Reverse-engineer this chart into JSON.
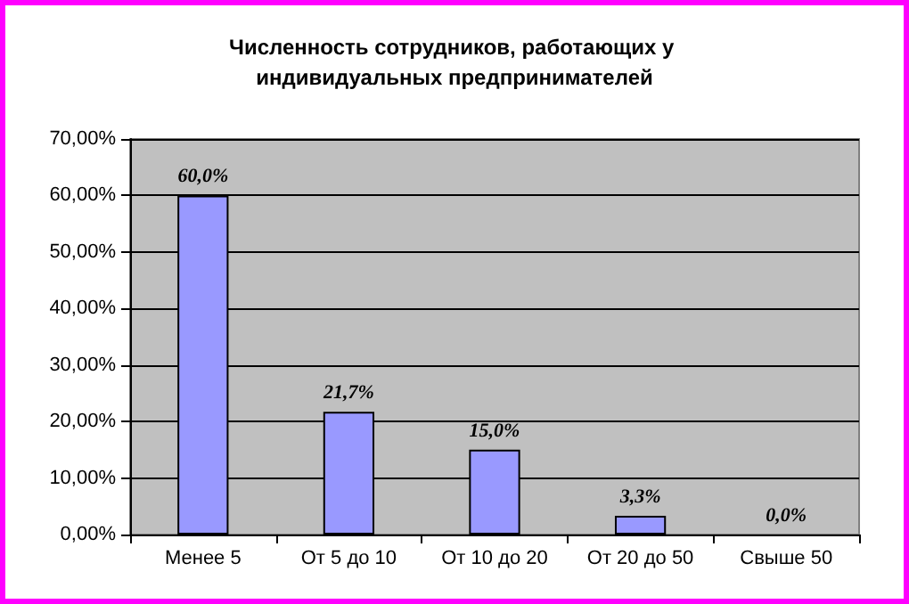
{
  "chart_data": {
    "type": "bar",
    "title": "Численность сотрудников, работающих у индивидуальных предпринимателей",
    "categories": [
      "Менее 5",
      "От 5 до 10",
      "От 10 до 20",
      "От 20 до 50",
      "Свыше 50"
    ],
    "values": [
      60.0,
      21.7,
      15.0,
      3.3,
      0.0
    ],
    "value_labels": [
      "60,0%",
      "21,7%",
      "15,0%",
      "3,3%",
      "0,0%"
    ],
    "color": "#9999ff",
    "ylim": [
      0,
      70
    ],
    "yticks": [
      {
        "value": 0,
        "label": "0,00%"
      },
      {
        "value": 10,
        "label": "10,00%"
      },
      {
        "value": 20,
        "label": "20,00%"
      },
      {
        "value": 30,
        "label": "30,00%"
      },
      {
        "value": 40,
        "label": "40,00%"
      },
      {
        "value": 50,
        "label": "50,00%"
      },
      {
        "value": 60,
        "label": "60,00%"
      },
      {
        "value": 70,
        "label": "70,00%"
      }
    ],
    "grid": "y"
  }
}
